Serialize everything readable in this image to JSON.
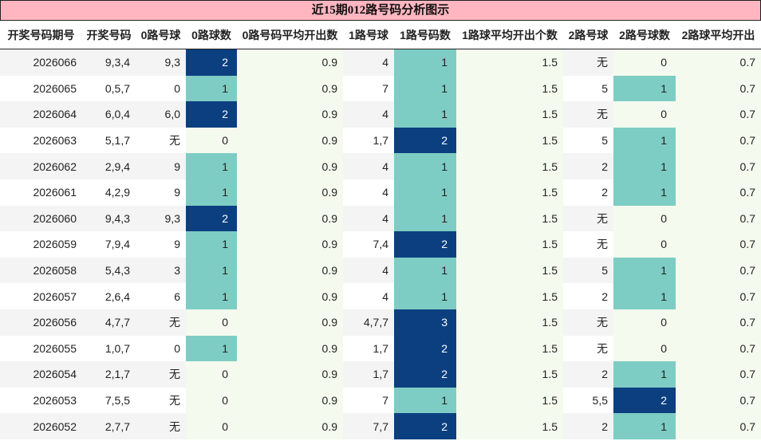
{
  "title": "近15期012路号码分析图示",
  "columns": [
    "开奖号码期号",
    "开奖号码",
    "0路号球",
    "0路球数",
    "0路号码平均开出数",
    "1路号球",
    "1路号码数",
    "1路球平均开出个数",
    "2路号球",
    "2路号球数",
    "2路球平均开出"
  ],
  "colors": {
    "title_bg": "#ffb6c1",
    "count_1": "#7ecdc4",
    "count_2plus": "#0b3f80",
    "avg_col_bg": "#f4fbee"
  },
  "rows": [
    {
      "period": "2026066",
      "numbers": "9,3,4",
      "r0": "9,3",
      "r0n": "2",
      "r0avg": "0.9",
      "r1": "4",
      "r1n": "1",
      "r1avg": "1.5",
      "r2": "无",
      "r2n": "0",
      "r2avg": "0.7"
    },
    {
      "period": "2026065",
      "numbers": "0,5,7",
      "r0": "0",
      "r0n": "1",
      "r0avg": "0.9",
      "r1": "7",
      "r1n": "1",
      "r1avg": "1.5",
      "r2": "5",
      "r2n": "1",
      "r2avg": "0.7"
    },
    {
      "period": "2026064",
      "numbers": "6,0,4",
      "r0": "6,0",
      "r0n": "2",
      "r0avg": "0.9",
      "r1": "4",
      "r1n": "1",
      "r1avg": "1.5",
      "r2": "无",
      "r2n": "0",
      "r2avg": "0.7"
    },
    {
      "period": "2026063",
      "numbers": "5,1,7",
      "r0": "无",
      "r0n": "0",
      "r0avg": "0.9",
      "r1": "1,7",
      "r1n": "2",
      "r1avg": "1.5",
      "r2": "5",
      "r2n": "1",
      "r2avg": "0.7"
    },
    {
      "period": "2026062",
      "numbers": "2,9,4",
      "r0": "9",
      "r0n": "1",
      "r0avg": "0.9",
      "r1": "4",
      "r1n": "1",
      "r1avg": "1.5",
      "r2": "2",
      "r2n": "1",
      "r2avg": "0.7"
    },
    {
      "period": "2026061",
      "numbers": "4,2,9",
      "r0": "9",
      "r0n": "1",
      "r0avg": "0.9",
      "r1": "4",
      "r1n": "1",
      "r1avg": "1.5",
      "r2": "2",
      "r2n": "1",
      "r2avg": "0.7"
    },
    {
      "period": "2026060",
      "numbers": "9,4,3",
      "r0": "9,3",
      "r0n": "2",
      "r0avg": "0.9",
      "r1": "4",
      "r1n": "1",
      "r1avg": "1.5",
      "r2": "无",
      "r2n": "0",
      "r2avg": "0.7"
    },
    {
      "period": "2026059",
      "numbers": "7,9,4",
      "r0": "9",
      "r0n": "1",
      "r0avg": "0.9",
      "r1": "7,4",
      "r1n": "2",
      "r1avg": "1.5",
      "r2": "无",
      "r2n": "0",
      "r2avg": "0.7"
    },
    {
      "period": "2026058",
      "numbers": "5,4,3",
      "r0": "3",
      "r0n": "1",
      "r0avg": "0.9",
      "r1": "4",
      "r1n": "1",
      "r1avg": "1.5",
      "r2": "5",
      "r2n": "1",
      "r2avg": "0.7"
    },
    {
      "period": "2026057",
      "numbers": "2,6,4",
      "r0": "6",
      "r0n": "1",
      "r0avg": "0.9",
      "r1": "4",
      "r1n": "1",
      "r1avg": "1.5",
      "r2": "2",
      "r2n": "1",
      "r2avg": "0.7"
    },
    {
      "period": "2026056",
      "numbers": "4,7,7",
      "r0": "无",
      "r0n": "0",
      "r0avg": "0.9",
      "r1": "4,7,7",
      "r1n": "3",
      "r1avg": "1.5",
      "r2": "无",
      "r2n": "0",
      "r2avg": "0.7"
    },
    {
      "period": "2026055",
      "numbers": "1,0,7",
      "r0": "0",
      "r0n": "1",
      "r0avg": "0.9",
      "r1": "1,7",
      "r1n": "2",
      "r1avg": "1.5",
      "r2": "无",
      "r2n": "0",
      "r2avg": "0.7"
    },
    {
      "period": "2026054",
      "numbers": "2,1,7",
      "r0": "无",
      "r0n": "0",
      "r0avg": "0.9",
      "r1": "1,7",
      "r1n": "2",
      "r1avg": "1.5",
      "r2": "2",
      "r2n": "1",
      "r2avg": "0.7"
    },
    {
      "period": "2026053",
      "numbers": "7,5,5",
      "r0": "无",
      "r0n": "0",
      "r0avg": "0.9",
      "r1": "7",
      "r1n": "1",
      "r1avg": "1.5",
      "r2": "5,5",
      "r2n": "2",
      "r2avg": "0.7"
    },
    {
      "period": "2026052",
      "numbers": "2,7,7",
      "r0": "无",
      "r0n": "0",
      "r0avg": "0.9",
      "r1": "7,7",
      "r1n": "2",
      "r1avg": "1.5",
      "r2": "2",
      "r2n": "1",
      "r2avg": "0.7"
    }
  ]
}
